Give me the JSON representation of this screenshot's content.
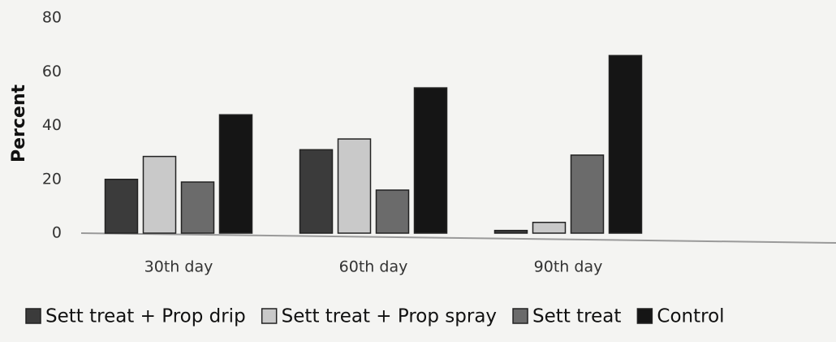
{
  "chart_data": {
    "type": "bar",
    "y_label": "Percent",
    "categories": [
      "30th day",
      "60th day",
      "90th day"
    ],
    "series": [
      {
        "name": "Sett treat + Prop drip",
        "color": "#3b3b3b",
        "values": [
          20,
          31,
          1
        ]
      },
      {
        "name": "Sett treat + Prop spray",
        "color": "#c9c9c9",
        "values": [
          28.5,
          35,
          4
        ]
      },
      {
        "name": "Sett treat",
        "color": "#6b6b6b",
        "values": [
          19,
          16,
          29
        ]
      },
      {
        "name": "Control",
        "color": "#151515",
        "values": [
          44,
          54,
          66
        ]
      }
    ],
    "ylim": [
      0,
      80
    ],
    "yticks": [
      0,
      20,
      40,
      60,
      80
    ],
    "grid": false,
    "legend": "bottom"
  }
}
